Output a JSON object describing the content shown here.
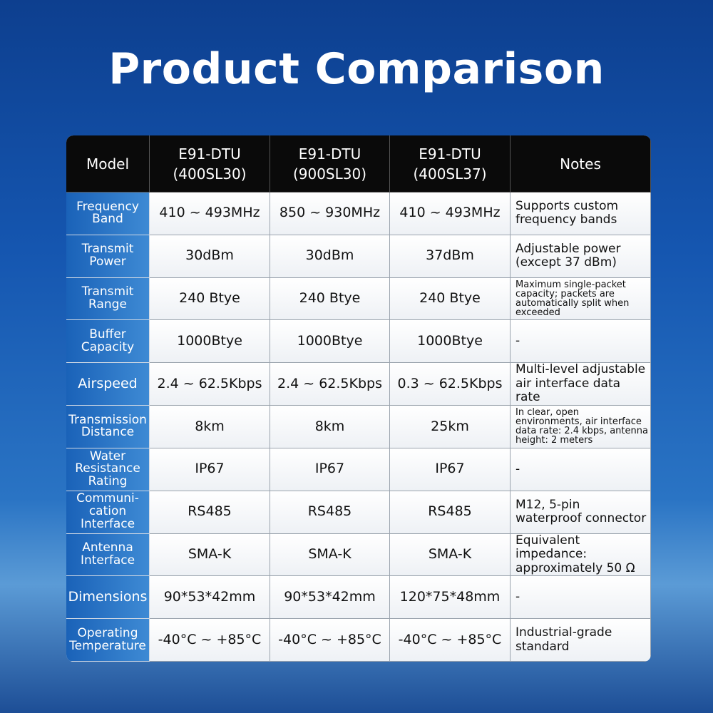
{
  "title": "Product Comparison",
  "table": {
    "header": [
      "Model",
      "E91-DTU\n(400SL30)",
      "E91-DTU\n(900SL30)",
      "E91-DTU\n(400SL37)",
      "Notes"
    ],
    "rows": [
      [
        "Frequency\nBand",
        "410 ~ 493MHz",
        "850 ~ 930MHz",
        "410 ~ 493MHz",
        "Supports custom frequency bands"
      ],
      [
        "Transmit\nPower",
        "30dBm",
        "30dBm",
        "37dBm",
        "Adjustable power (except 37 dBm)"
      ],
      [
        "Transmit\nRange",
        "240 Btye",
        "240 Btye",
        "240 Btye",
        "Maximum single-packet capacity; packets are automatically split when exceeded"
      ],
      [
        "Buffer\nCapacity",
        "1000Btye",
        "1000Btye",
        "1000Btye",
        "-"
      ],
      [
        "Airspeed",
        "2.4 ~ 62.5Kbps",
        "2.4 ~ 62.5Kbps",
        "0.3 ~ 62.5Kbps",
        "Multi-level adjustable air interface data rate"
      ],
      [
        "Transmission\nDistance",
        "8km",
        "8km",
        "25km",
        "In clear, open environments, air interface data rate: 2.4 kbps, antenna height: 2 meters"
      ],
      [
        "Water\nResistance\nRating",
        "IP67",
        "IP67",
        "IP67",
        "-"
      ],
      [
        "Communi-\ncation\nInterface",
        "RS485",
        "RS485",
        "RS485",
        "M12, 5-pin waterproof connector"
      ],
      [
        "Antenna\nInterface",
        "SMA-K",
        "SMA-K",
        "SMA-K",
        "Equivalent impedance: approximately 50 Ω"
      ],
      [
        "Dimensions",
        "90*53*42mm",
        "90*53*42mm",
        "120*75*48mm",
        "-"
      ],
      [
        "Operating\nTemperature",
        "-40°C ~ +85°C",
        "-40°C ~ +85°C",
        "-40°C ~ +85°C",
        "Industrial-grade standard"
      ]
    ]
  }
}
